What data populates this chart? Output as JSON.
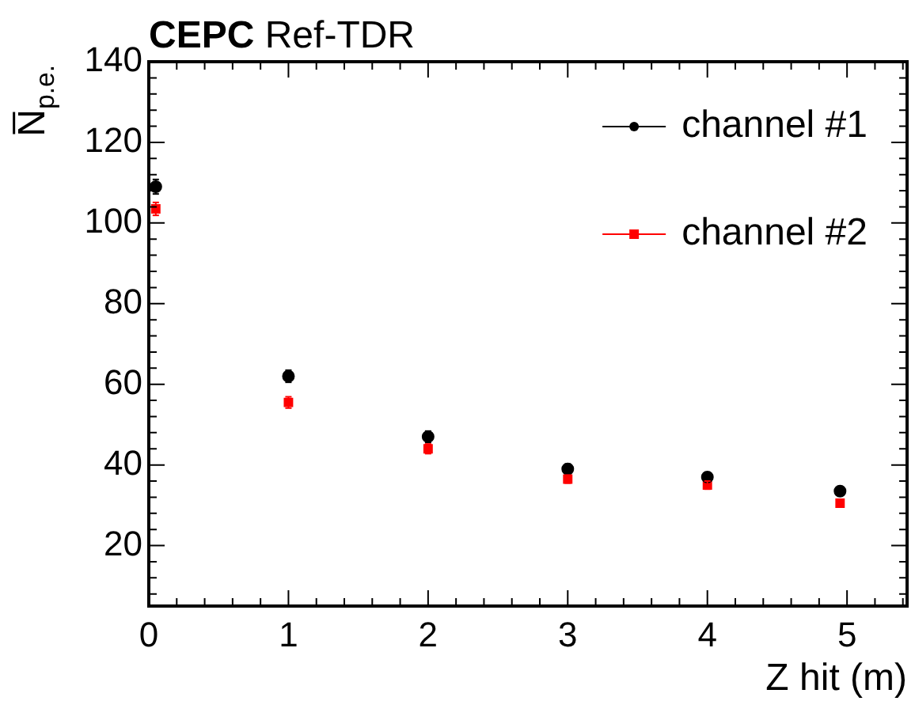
{
  "chart_data": {
    "type": "scatter",
    "title": "CEPC Ref-TDR",
    "xlabel": "Z hit (m)",
    "ylabel": "N̅$_{p.e.}$",
    "xlim": [
      0,
      5.43
    ],
    "xticks": [
      0,
      1,
      2,
      3,
      4,
      5
    ],
    "ylim": [
      5,
      140
    ],
    "yticks": [
      20,
      40,
      60,
      80,
      100,
      120,
      140
    ],
    "grid": false,
    "legend": "top right",
    "line_style": "solid",
    "series": [
      {
        "name": "channel #1",
        "color": "#000000",
        "marker": "circle",
        "x": [
          0.05,
          1,
          2,
          3,
          4,
          4.95
        ],
        "values": [
          109,
          62,
          47,
          39,
          37,
          33.5
        ],
        "errors": [
          1.8,
          1.5,
          1.4,
          1.2,
          1.1,
          1
        ]
      },
      {
        "name": "channel #2",
        "color": "#ff0000",
        "marker": "square",
        "x": [
          0.05,
          1,
          2,
          3,
          4,
          4.95
        ],
        "values": [
          103.5,
          55.5,
          44,
          36.5,
          35,
          30.5
        ],
        "errors": [
          1.6,
          1.4,
          1.2,
          1,
          1,
          0.9
        ]
      }
    ]
  }
}
